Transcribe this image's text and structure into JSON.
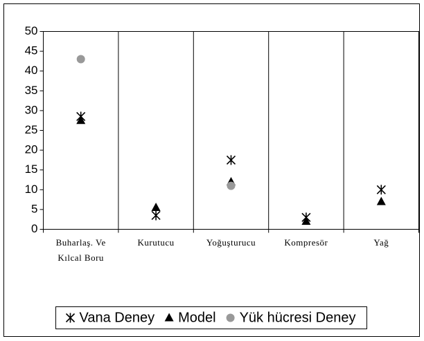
{
  "chart_data": {
    "type": "scatter",
    "categories": [
      "Buharlaş. Ve Kılcal Boru",
      "Kurutucu",
      "Yoğuşturucu",
      "Kompresör",
      "Yağ"
    ],
    "series": [
      {
        "name": "Vana Deney",
        "color": "#000000",
        "marker": "asterisk",
        "values": [
          28.5,
          3.5,
          17.5,
          3,
          10
        ]
      },
      {
        "name": "Model",
        "color": "#000000",
        "marker": "triangle",
        "values": [
          27.5,
          5.5,
          12,
          2,
          7
        ]
      },
      {
        "name": "Yük hücresi Deney",
        "color": "#999999",
        "marker": "circle",
        "values": [
          43,
          null,
          11,
          null,
          null
        ]
      }
    ],
    "ylim": [
      0,
      50
    ],
    "yticks": [
      0,
      5,
      10,
      15,
      20,
      25,
      30,
      35,
      40,
      45,
      50
    ],
    "legend": "bottom"
  }
}
